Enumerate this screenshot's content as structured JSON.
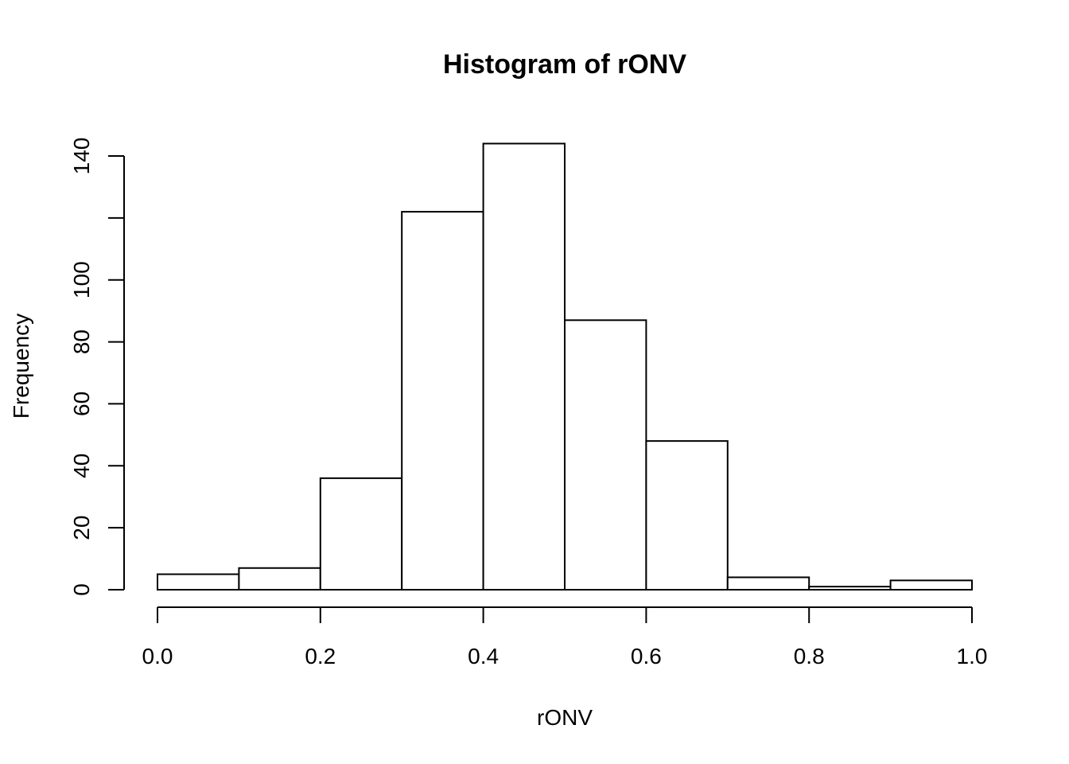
{
  "chart_data": {
    "type": "bar",
    "title": "Histogram of rONV",
    "xlabel": "rONV",
    "ylabel": "Frequency",
    "bins": [
      {
        "start": 0.0,
        "end": 0.1,
        "count": 5
      },
      {
        "start": 0.1,
        "end": 0.2,
        "count": 7
      },
      {
        "start": 0.2,
        "end": 0.3,
        "count": 36
      },
      {
        "start": 0.3,
        "end": 0.4,
        "count": 122
      },
      {
        "start": 0.4,
        "end": 0.5,
        "count": 144
      },
      {
        "start": 0.5,
        "end": 0.6,
        "count": 87
      },
      {
        "start": 0.6,
        "end": 0.7,
        "count": 48
      },
      {
        "start": 0.7,
        "end": 0.8,
        "count": 4
      },
      {
        "start": 0.8,
        "end": 0.9,
        "count": 1
      },
      {
        "start": 0.9,
        "end": 1.0,
        "count": 3
      }
    ],
    "xlim": [
      0.0,
      1.0
    ],
    "ylim": [
      0,
      140
    ],
    "x_ticks": [
      0.0,
      0.2,
      0.4,
      0.6,
      0.8,
      1.0
    ],
    "x_tick_labels": [
      "0.0",
      "0.2",
      "0.4",
      "0.6",
      "0.8",
      "1.0"
    ],
    "y_ticks": [
      0,
      20,
      40,
      60,
      80,
      100,
      120,
      140
    ],
    "y_tick_labels": [
      "0",
      "20",
      "40",
      "60",
      "80",
      "100",
      "",
      "140"
    ],
    "grid": false,
    "bar_fill": "#ffffff",
    "bar_stroke": "#000000"
  }
}
